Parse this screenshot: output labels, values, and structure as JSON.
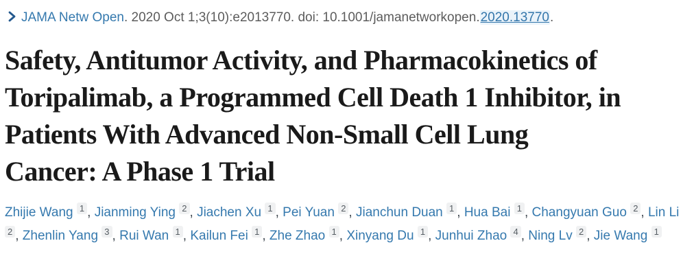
{
  "colors": {
    "link_blue": "#3579ae",
    "chevron_blue": "#24598e",
    "citation_gray": "#5c5c5c",
    "title_black": "#1a1a1a",
    "badge_background": "#f0f1f2",
    "doi_highlight": "#eaf3fa"
  },
  "citation": {
    "chevron_icon": "chevron-right",
    "journal": "JAMA Netw Open",
    "details": ". 2020 Oct 1;3(10):e2013770. doi: 10.1001/jamanetworkopen.",
    "doi_link": "2020.13770",
    "tail": "."
  },
  "title": {
    "full": "Safety, Antitumor Activity, and Pharmacokinetics of Toripalimab, a Programmed Cell Death 1 Inhibitor, in Patients With Advanced Non-Small Cell Lung Cancer: A Phase 1 Trial",
    "lines": [
      "Safety, Antitumor Activity, and Pharmacokinetics of",
      "Toripalimab, a Programmed Cell Death 1 Inhibitor, in",
      "Patients With Advanced Non-Small Cell Lung",
      "Cancer: A Phase 1 Trial"
    ]
  },
  "authors": [
    {
      "name": "Zhijie Wang",
      "affiliation": "1"
    },
    {
      "name": "Jianming Ying",
      "affiliation": "2"
    },
    {
      "name": "Jiachen Xu",
      "affiliation": "1"
    },
    {
      "name": "Pei Yuan",
      "affiliation": "2"
    },
    {
      "name": "Jianchun Duan",
      "affiliation": "1"
    },
    {
      "name": "Hua Bai",
      "affiliation": "1"
    },
    {
      "name": "Changyuan Guo",
      "affiliation": "2"
    },
    {
      "name": "Lin Li",
      "affiliation": "2"
    },
    {
      "name": "Zhenlin Yang",
      "affiliation": "3"
    },
    {
      "name": "Rui Wan",
      "affiliation": "1"
    },
    {
      "name": "Kailun Fei",
      "affiliation": "1"
    },
    {
      "name": "Zhe Zhao",
      "affiliation": "1"
    },
    {
      "name": "Xinyang Du",
      "affiliation": "1"
    },
    {
      "name": "Junhui Zhao",
      "affiliation": "4"
    },
    {
      "name": "Ning Lv",
      "affiliation": "2"
    },
    {
      "name": "Jie Wang",
      "affiliation": "1"
    }
  ]
}
